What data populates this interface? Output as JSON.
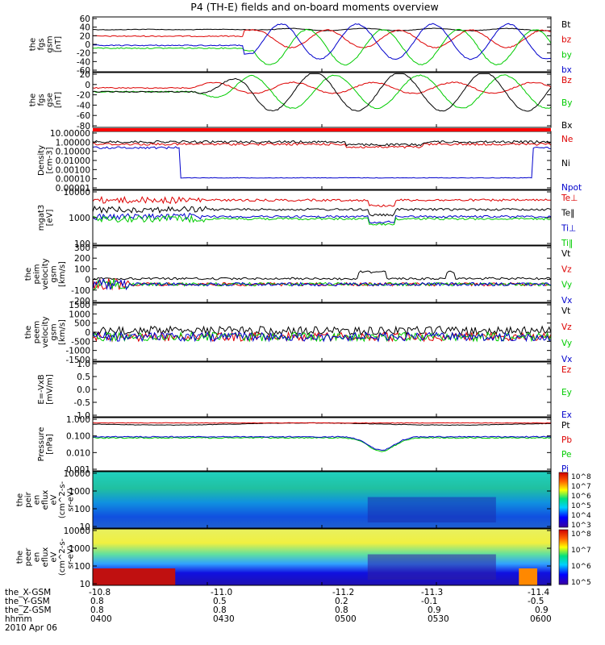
{
  "title": "P4 (TH-E) fields and on-board moments overview",
  "colors": {
    "black": "#000000",
    "red": "#dd0000",
    "green": "#00cc00",
    "blue": "#0000cc"
  },
  "x_axis": {
    "rows": [
      {
        "label": "the_X-GSM",
        "ticks": [
          "-10.8",
          "-11.0",
          "-11.2",
          "-11.3",
          "-11.4"
        ]
      },
      {
        "label": "the_Y-GSM",
        "ticks": [
          "0.8",
          "0.5",
          "0.2",
          "-0.1",
          "-0.5"
        ]
      },
      {
        "label": "the_Z-GSM",
        "ticks": [
          "0.8",
          "0.8",
          "0.8",
          "0.9",
          "0.9"
        ]
      },
      {
        "label": "hhmm",
        "ticks": [
          "0400",
          "0430",
          "0500",
          "0530",
          "0600"
        ]
      }
    ],
    "date": "2010 Apr 06"
  },
  "chart_data": [
    {
      "type": "line",
      "id": "fgs_gsm",
      "ylabel": [
        "the",
        "fgs",
        "gsm",
        "[nT]"
      ],
      "yticks": [
        "60",
        "40",
        "20",
        "0",
        "-20",
        "-40",
        "-60"
      ],
      "series": [
        {
          "name": "Bt",
          "color": "#000000",
          "points": [
            [
              0,
              40
            ],
            [
              0.35,
              31
            ],
            [
              1,
              40
            ]
          ]
        },
        {
          "name": "bz",
          "color": "#dd0000",
          "points": [
            [
              0,
              18
            ],
            [
              0.3,
              18
            ],
            [
              0.5,
              8
            ],
            [
              1,
              12
            ]
          ]
        },
        {
          "name": "by",
          "color": "#00cc00",
          "points": [
            [
              0,
              5
            ],
            [
              0.25,
              0
            ],
            [
              0.35,
              -20
            ],
            [
              1,
              -20
            ]
          ]
        },
        {
          "name": "bx",
          "color": "#0000cc",
          "points": [
            [
              0,
              30
            ],
            [
              0.25,
              30
            ],
            [
              0.35,
              -5
            ],
            [
              1,
              -10
            ]
          ]
        }
      ]
    },
    {
      "type": "line",
      "id": "fgs_gse",
      "ylabel": [
        "the",
        "fgs",
        "gse",
        "[nT]"
      ],
      "yticks": [
        "20",
        "0",
        "-20",
        "-40",
        "-60",
        "-80"
      ],
      "series": [
        {
          "name": "Bz",
          "color": "#dd0000"
        },
        {
          "name": "By",
          "color": "#00cc00"
        },
        {
          "name": "Bx",
          "color": "#000000"
        }
      ]
    },
    {
      "type": "line",
      "id": "density",
      "ylabel": [
        "Density",
        "[cm-3]"
      ],
      "log": true,
      "yticks": [
        "10.00000",
        "1.00000",
        "0.10000",
        "0.01000",
        "0.00100",
        "0.00010",
        "0.00001"
      ],
      "series": [
        {
          "name": "Ne",
          "color": "#dd0000"
        },
        {
          "name": "Ni",
          "color": "#000000"
        },
        {
          "name": "Npot",
          "color": "#0000cc"
        }
      ]
    },
    {
      "type": "line",
      "id": "temperature",
      "ylabel": [
        "mgat3",
        "[eV]"
      ],
      "log": true,
      "yticks": [
        "10000",
        "1000",
        "100"
      ],
      "series": [
        {
          "name": "Te⊥",
          "color": "#dd0000"
        },
        {
          "name": "Te‖",
          "color": "#000000"
        },
        {
          "name": "Ti⊥",
          "color": "#0000cc"
        },
        {
          "name": "Ti‖",
          "color": "#00cc00"
        }
      ]
    },
    {
      "type": "line",
      "id": "peim_velocity",
      "ylabel": [
        "the",
        "peim",
        "velocity",
        "gsm",
        "[km/s]"
      ],
      "yticks": [
        "300",
        "200",
        "100",
        "0",
        "-100",
        "-200"
      ],
      "series": [
        {
          "name": "Vt",
          "color": "#000000"
        },
        {
          "name": "Vz",
          "color": "#dd0000"
        },
        {
          "name": "Vy",
          "color": "#00cc00"
        },
        {
          "name": "Vx",
          "color": "#0000cc"
        }
      ]
    },
    {
      "type": "line",
      "id": "peem_velocity",
      "ylabel": [
        "the",
        "peem",
        "velocity",
        "gsm",
        "[km/s]"
      ],
      "yticks": [
        "1500",
        "1000",
        "500",
        "0",
        "-500",
        "-1000",
        "-1500"
      ],
      "series": [
        {
          "name": "Vt",
          "color": "#000000"
        },
        {
          "name": "Vz",
          "color": "#dd0000"
        },
        {
          "name": "Vy",
          "color": "#00cc00"
        },
        {
          "name": "Vx",
          "color": "#0000cc"
        }
      ]
    },
    {
      "type": "line",
      "id": "efield",
      "ylabel": [
        "E=-VxB",
        "[mV/m]"
      ],
      "yticks": [
        "1.0",
        "0.5",
        "0.0",
        "-0.5",
        "-1.0"
      ],
      "series": [
        {
          "name": "Ez",
          "color": "#dd0000"
        },
        {
          "name": "Ey",
          "color": "#00cc00"
        },
        {
          "name": "Ex",
          "color": "#0000cc"
        }
      ]
    },
    {
      "type": "line",
      "id": "pressure",
      "ylabel": [
        "Pressure",
        "[nPa]"
      ],
      "log": true,
      "yticks": [
        "1.000",
        "0.100",
        "0.010",
        "0.001"
      ],
      "series": [
        {
          "name": "Pt",
          "color": "#000000"
        },
        {
          "name": "Pb",
          "color": "#dd0000"
        },
        {
          "name": "Pe",
          "color": "#00cc00"
        },
        {
          "name": "Pi",
          "color": "#0000cc"
        }
      ]
    },
    {
      "type": "heatmap",
      "id": "peir_eflux",
      "ylabel": [
        "the",
        "peir",
        "en",
        "eflux",
        "eV",
        "(cm^2-s-",
        "sr-eV)"
      ],
      "log": true,
      "yticks": [
        "10000",
        "1000",
        "100",
        "10"
      ],
      "colorbar_ticks": [
        "10^8",
        "10^7",
        "10^6",
        "10^5",
        "10^4",
        "10^3"
      ]
    },
    {
      "type": "heatmap",
      "id": "peer_eflux",
      "ylabel": [
        "the",
        "peer",
        "en",
        "eflux",
        "eV",
        "(cm^2-s-",
        "sr-eV)"
      ],
      "log": true,
      "yticks": [
        "10000",
        "1000",
        "100",
        "10"
      ],
      "colorbar_ticks": [
        "10^8",
        "10^7",
        "10^6",
        "10^5"
      ]
    }
  ]
}
